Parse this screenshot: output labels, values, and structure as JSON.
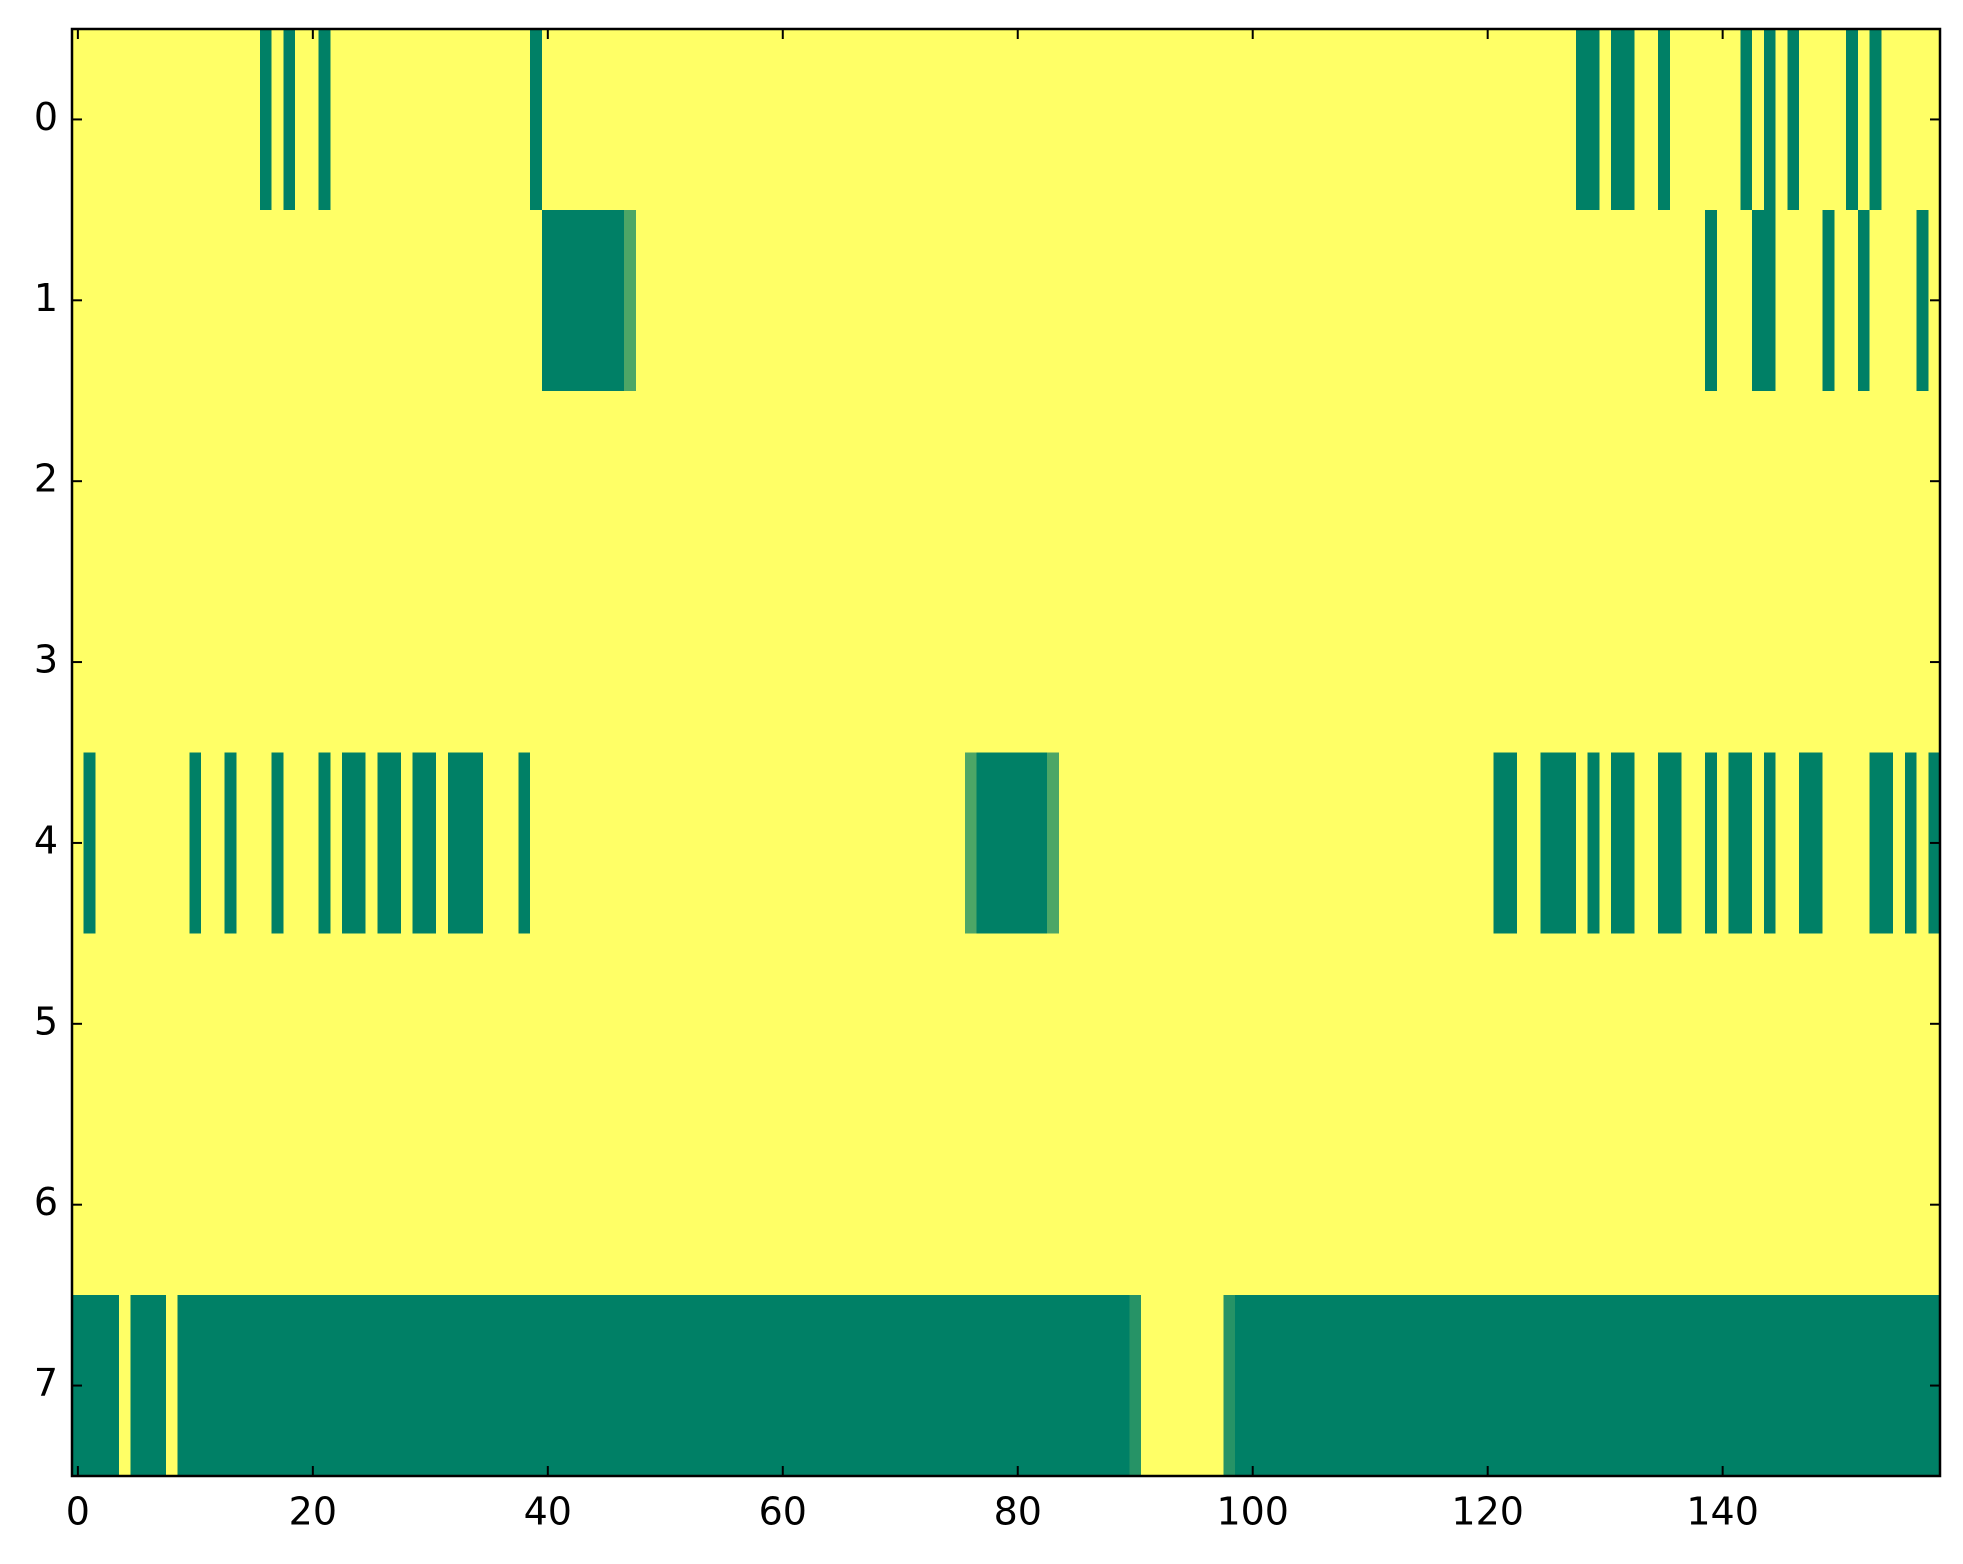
{
  "chart_data": {
    "type": "heatmap",
    "colors": [
      "#008066",
      "#ffff66"
    ],
    "clim": [
      0,
      1
    ],
    "xlim": [
      -0.5,
      158.5
    ],
    "ylim": [
      7.5,
      -0.5
    ],
    "xticks": [
      0,
      20,
      40,
      60,
      80,
      100,
      120,
      140
    ],
    "yticks": [
      0,
      1,
      2,
      3,
      4,
      5,
      6,
      7
    ],
    "z": [
      [
        1,
        1,
        1,
        1,
        1,
        1,
        1,
        1,
        1,
        1,
        1,
        1,
        1,
        1,
        1,
        1,
        0,
        1,
        0,
        1,
        1,
        0,
        1,
        1,
        1,
        1,
        1,
        1,
        1,
        1,
        1,
        1,
        1,
        1,
        1,
        1,
        1,
        1,
        1,
        0,
        1,
        1,
        1,
        1,
        1,
        1,
        1,
        1,
        1,
        1,
        1,
        1,
        1,
        1,
        1,
        1,
        1,
        1,
        1,
        1,
        1,
        1,
        1,
        1,
        1,
        1,
        1,
        1,
        1,
        1,
        1,
        1,
        1,
        1,
        1,
        1,
        1,
        1,
        1,
        1,
        1,
        1,
        1,
        1,
        1,
        1,
        1,
        1,
        1,
        1,
        1,
        1,
        1,
        1,
        1,
        1,
        1,
        1,
        1,
        1,
        1,
        1,
        1,
        1,
        1,
        1,
        1,
        1,
        1,
        1,
        1,
        1,
        1,
        1,
        1,
        1,
        1,
        1,
        1,
        1,
        1,
        1,
        1,
        1,
        1,
        1,
        1,
        1,
        0,
        0,
        1,
        0,
        0,
        1,
        1,
        0,
        1,
        1,
        1,
        1,
        1,
        1,
        0,
        1,
        0,
        1,
        0,
        1,
        1,
        1,
        1,
        0,
        1,
        0,
        1,
        1,
        1,
        1,
        1
      ],
      [
        1,
        1,
        1,
        1,
        1,
        1,
        1,
        1,
        1,
        1,
        1,
        1,
        1,
        1,
        1,
        1,
        1,
        1,
        1,
        1,
        1,
        1,
        1,
        1,
        1,
        1,
        1,
        1,
        1,
        1,
        1,
        1,
        1,
        1,
        1,
        1,
        1,
        1,
        1,
        1,
        0,
        0,
        0,
        0,
        0,
        0,
        0,
        0.3,
        1,
        1,
        1,
        1,
        1,
        1,
        1,
        1,
        1,
        1,
        1,
        1,
        1,
        1,
        1,
        1,
        1,
        1,
        1,
        1,
        1,
        1,
        1,
        1,
        1,
        1,
        1,
        1,
        1,
        1,
        1,
        1,
        1,
        1,
        1,
        1,
        1,
        1,
        1,
        1,
        1,
        1,
        1,
        1,
        1,
        1,
        1,
        1,
        1,
        1,
        1,
        1,
        1,
        1,
        1,
        1,
        1,
        1,
        1,
        1,
        1,
        1,
        1,
        1,
        1,
        1,
        1,
        1,
        1,
        1,
        1,
        1,
        1,
        1,
        1,
        1,
        1,
        1,
        1,
        1,
        1,
        1,
        1,
        1,
        1,
        1,
        1,
        1,
        1,
        1,
        1,
        0,
        1,
        1,
        1,
        0,
        0,
        1,
        1,
        1,
        1,
        0,
        1,
        1,
        0,
        1,
        1,
        1,
        1,
        0,
        1
      ],
      [
        1,
        1,
        1,
        1,
        1,
        1,
        1,
        1,
        1,
        1,
        1,
        1,
        1,
        1,
        1,
        1,
        1,
        1,
        1,
        1,
        1,
        1,
        1,
        1,
        1,
        1,
        1,
        1,
        1,
        1,
        1,
        1,
        1,
        1,
        1,
        1,
        1,
        1,
        1,
        1,
        1,
        1,
        1,
        1,
        1,
        1,
        1,
        1,
        1,
        1,
        1,
        1,
        1,
        1,
        1,
        1,
        1,
        1,
        1,
        1,
        1,
        1,
        1,
        1,
        1,
        1,
        1,
        1,
        1,
        1,
        1,
        1,
        1,
        1,
        1,
        1,
        1,
        1,
        1,
        1,
        1,
        1,
        1,
        1,
        1,
        1,
        1,
        1,
        1,
        1,
        1,
        1,
        1,
        1,
        1,
        1,
        1,
        1,
        1,
        1,
        1,
        1,
        1,
        1,
        1,
        1,
        1,
        1,
        1,
        1,
        1,
        1,
        1,
        1,
        1,
        1,
        1,
        1,
        1,
        1,
        1,
        1,
        1,
        1,
        1,
        1,
        1,
        1,
        1,
        1,
        1,
        1,
        1,
        1,
        1,
        1,
        1,
        1,
        1,
        1,
        1,
        1,
        1,
        1,
        1,
        1,
        1,
        1,
        1,
        1,
        1,
        1,
        1,
        1,
        1,
        1,
        1,
        1,
        1
      ],
      [
        1,
        1,
        1,
        1,
        1,
        1,
        1,
        1,
        1,
        1,
        1,
        1,
        1,
        1,
        1,
        1,
        1,
        1,
        1,
        1,
        1,
        1,
        1,
        1,
        1,
        1,
        1,
        1,
        1,
        1,
        1,
        1,
        1,
        1,
        1,
        1,
        1,
        1,
        1,
        1,
        1,
        1,
        1,
        1,
        1,
        1,
        1,
        1,
        1,
        1,
        1,
        1,
        1,
        1,
        1,
        1,
        1,
        1,
        1,
        1,
        1,
        1,
        1,
        1,
        1,
        1,
        1,
        1,
        1,
        1,
        1,
        1,
        1,
        1,
        1,
        1,
        1,
        1,
        1,
        1,
        1,
        1,
        1,
        1,
        1,
        1,
        1,
        1,
        1,
        1,
        1,
        1,
        1,
        1,
        1,
        1,
        1,
        1,
        1,
        1,
        1,
        1,
        1,
        1,
        1,
        1,
        1,
        1,
        1,
        1,
        1,
        1,
        1,
        1,
        1,
        1,
        1,
        1,
        1,
        1,
        1,
        1,
        1,
        1,
        1,
        1,
        1,
        1,
        1,
        1,
        1,
        1,
        1,
        1,
        1,
        1,
        1,
        1,
        1,
        1,
        1,
        1,
        1,
        1,
        1,
        1,
        1,
        1,
        1,
        1,
        1,
        1,
        1,
        1,
        1,
        1,
        1,
        1,
        1
      ],
      [
        1,
        0,
        1,
        1,
        1,
        1,
        1,
        1,
        1,
        1,
        0,
        1,
        1,
        0,
        1,
        1,
        1,
        0,
        1,
        1,
        1,
        0,
        1,
        0,
        0,
        1,
        0,
        0,
        1,
        0,
        0,
        1,
        0,
        0,
        0,
        1,
        1,
        1,
        0,
        1,
        1,
        1,
        1,
        1,
        1,
        1,
        1,
        1,
        1,
        1,
        1,
        1,
        1,
        1,
        1,
        1,
        1,
        1,
        1,
        1,
        1,
        1,
        1,
        1,
        1,
        1,
        1,
        1,
        1,
        1,
        1,
        1,
        1,
        1,
        1,
        1,
        0.3,
        0,
        0,
        0,
        0,
        0,
        0,
        0.3,
        1,
        1,
        1,
        1,
        1,
        1,
        1,
        1,
        1,
        1,
        1,
        1,
        1,
        1,
        1,
        1,
        1,
        1,
        1,
        1,
        1,
        1,
        1,
        1,
        1,
        1,
        1,
        1,
        1,
        1,
        1,
        1,
        1,
        1,
        1,
        1,
        1,
        0,
        0,
        1,
        1,
        0,
        0,
        0,
        1,
        0,
        1,
        0,
        0,
        1,
        1,
        0,
        0,
        1,
        1,
        0,
        1,
        0,
        0,
        1,
        0,
        1,
        1,
        0,
        0,
        1,
        1,
        1,
        1,
        0,
        0,
        1,
        0,
        1,
        0
      ],
      [
        1,
        1,
        1,
        1,
        1,
        1,
        1,
        1,
        1,
        1,
        1,
        1,
        1,
        1,
        1,
        1,
        1,
        1,
        1,
        1,
        1,
        1,
        1,
        1,
        1,
        1,
        1,
        1,
        1,
        1,
        1,
        1,
        1,
        1,
        1,
        1,
        1,
        1,
        1,
        1,
        1,
        1,
        1,
        1,
        1,
        1,
        1,
        1,
        1,
        1,
        1,
        1,
        1,
        1,
        1,
        1,
        1,
        1,
        1,
        1,
        1,
        1,
        1,
        1,
        1,
        1,
        1,
        1,
        1,
        1,
        1,
        1,
        1,
        1,
        1,
        1,
        1,
        1,
        1,
        1,
        1,
        1,
        1,
        1,
        1,
        1,
        1,
        1,
        1,
        1,
        1,
        1,
        1,
        1,
        1,
        1,
        1,
        1,
        1,
        1,
        1,
        1,
        1,
        1,
        1,
        1,
        1,
        1,
        1,
        1,
        1,
        1,
        1,
        1,
        1,
        1,
        1,
        1,
        1,
        1,
        1,
        1,
        1,
        1,
        1,
        1,
        1,
        1,
        1,
        1,
        1,
        1,
        1,
        1,
        1,
        1,
        1,
        1,
        1,
        1,
        1,
        1,
        1,
        1,
        1,
        1,
        1,
        1,
        1,
        1,
        1,
        1,
        1,
        1,
        1,
        1,
        1,
        1,
        1
      ],
      [
        1,
        1,
        1,
        1,
        1,
        1,
        1,
        1,
        1,
        1,
        1,
        1,
        1,
        1,
        1,
        1,
        1,
        1,
        1,
        1,
        1,
        1,
        1,
        1,
        1,
        1,
        1,
        1,
        1,
        1,
        1,
        1,
        1,
        1,
        1,
        1,
        1,
        1,
        1,
        1,
        1,
        1,
        1,
        1,
        1,
        1,
        1,
        1,
        1,
        1,
        1,
        1,
        1,
        1,
        1,
        1,
        1,
        1,
        1,
        1,
        1,
        1,
        1,
        1,
        1,
        1,
        1,
        1,
        1,
        1,
        1,
        1,
        1,
        1,
        1,
        1,
        1,
        1,
        1,
        1,
        1,
        1,
        1,
        1,
        1,
        1,
        1,
        1,
        1,
        1,
        1,
        1,
        1,
        1,
        1,
        1,
        1,
        1,
        1,
        1,
        1,
        1,
        1,
        1,
        1,
        1,
        1,
        1,
        1,
        1,
        1,
        1,
        1,
        1,
        1,
        1,
        1,
        1,
        1,
        1,
        1,
        1,
        1,
        1,
        1,
        1,
        1,
        1,
        1,
        1,
        1,
        1,
        1,
        1,
        1,
        1,
        1,
        1,
        1,
        1,
        1,
        1,
        1,
        1,
        1,
        1,
        1,
        1,
        1,
        1,
        1,
        1,
        1,
        1,
        1,
        1,
        1,
        1,
        1
      ],
      [
        0,
        0,
        0,
        0,
        1,
        0,
        0,
        0,
        1,
        0,
        0,
        0,
        0,
        0,
        0,
        0,
        0,
        0,
        0,
        0,
        0,
        0,
        0,
        0,
        0,
        0,
        0,
        0,
        0,
        0,
        0,
        0,
        0,
        0,
        0,
        0,
        0,
        0,
        0,
        0,
        0,
        0,
        0,
        0,
        0,
        0,
        0,
        0,
        0,
        0,
        0,
        0,
        0,
        0,
        0,
        0,
        0,
        0,
        0,
        0,
        0,
        0,
        0,
        0,
        0,
        0,
        0,
        0,
        0,
        0,
        0,
        0,
        0,
        0,
        0,
        0,
        0,
        0,
        0,
        0,
        0,
        0,
        0,
        0,
        0,
        0,
        0,
        0,
        0,
        0,
        0.15,
        1,
        1,
        1,
        1,
        1,
        1,
        1,
        0.15,
        0,
        0,
        0,
        0,
        0,
        0,
        0,
        0,
        0,
        0,
        0,
        0,
        0,
        0,
        0,
        0,
        0,
        0,
        0,
        0,
        0,
        0,
        0,
        0,
        0,
        0,
        0,
        0,
        0,
        0,
        0,
        0,
        0,
        0,
        0,
        0,
        0,
        0,
        0,
        0,
        0,
        0,
        0,
        0,
        0,
        0,
        0,
        0,
        0,
        0,
        0,
        0,
        0,
        0,
        0,
        0,
        0,
        0,
        0,
        0
      ]
    ]
  }
}
